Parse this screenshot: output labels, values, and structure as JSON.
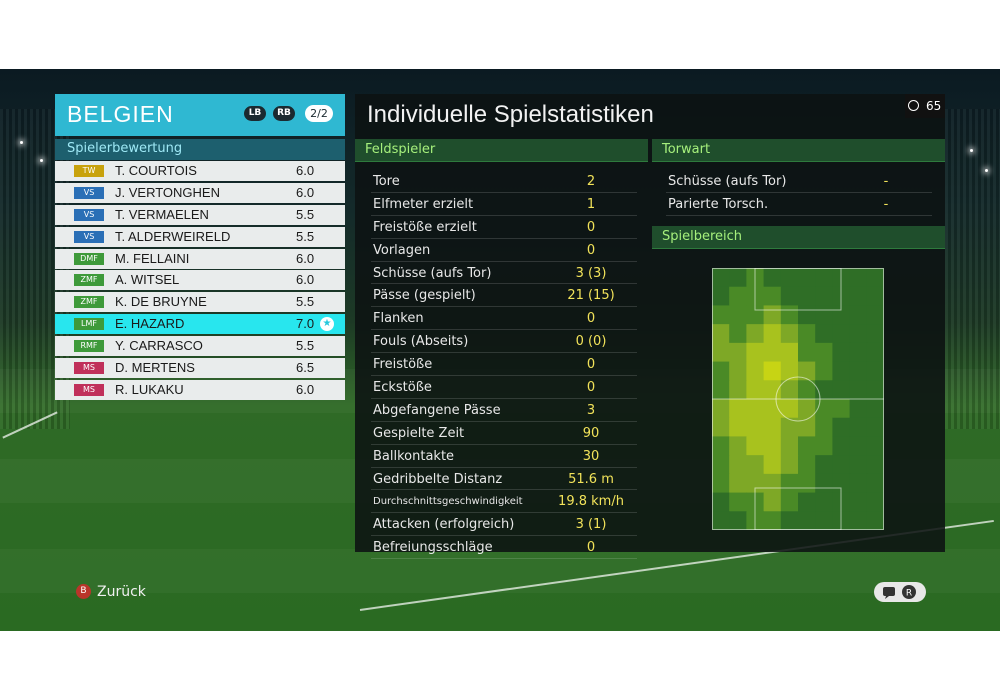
{
  "team": {
    "name": "BELGIEN",
    "lb_label": "LB",
    "rb_label": "RB",
    "page_indicator": "2/2"
  },
  "rating_header": "Spielerbewertung",
  "players": [
    {
      "pos": "TW",
      "pos_color": "#c8a20c",
      "name": "T. COURTOIS",
      "rating": "6.0"
    },
    {
      "pos": "VS",
      "pos_color": "#2a6fb6",
      "name": "J. VERTONGHEN",
      "rating": "6.0"
    },
    {
      "pos": "VS",
      "pos_color": "#2a6fb6",
      "name": "T. VERMAELEN",
      "rating": "5.5"
    },
    {
      "pos": "VS",
      "pos_color": "#2a6fb6",
      "name": "T. ALDERWEIRELD",
      "rating": "5.5"
    },
    {
      "pos": "DMF",
      "pos_color": "#3e9a3a",
      "name": "M. FELLAINI",
      "rating": "6.0"
    },
    {
      "pos": "ZMF",
      "pos_color": "#3e9a3a",
      "name": "A. WITSEL",
      "rating": "6.0"
    },
    {
      "pos": "ZMF",
      "pos_color": "#3e9a3a",
      "name": "K. DE BRUYNE",
      "rating": "5.5"
    },
    {
      "pos": "LMF",
      "pos_color": "#3e9a3a",
      "name": "E. HAZARD",
      "rating": "7.0",
      "selected": true
    },
    {
      "pos": "RMF",
      "pos_color": "#3e9a3a",
      "name": "Y. CARRASCO",
      "rating": "5.5"
    },
    {
      "pos": "MS",
      "pos_color": "#c0305a",
      "name": "D. MERTENS",
      "rating": "6.5"
    },
    {
      "pos": "MS",
      "pos_color": "#c0305a",
      "name": "R. LUKAKU",
      "rating": "6.0"
    }
  ],
  "stats_title": "Individuelle Spielstatistiken",
  "clock": {
    "icon": "clock-icon",
    "value": "65"
  },
  "field_section": "Feldspieler",
  "field_stats": [
    {
      "label": "Tore",
      "value": "2"
    },
    {
      "label": "Elfmeter erzielt",
      "value": "1"
    },
    {
      "label": "Freistöße erzielt",
      "value": "0"
    },
    {
      "label": "Vorlagen",
      "value": "0"
    },
    {
      "label": "Schüsse (aufs Tor)",
      "value": "3 (3)"
    },
    {
      "label": "Pässe (gespielt)",
      "value": "21 (15)"
    },
    {
      "label": "Flanken",
      "value": "0"
    },
    {
      "label": "Fouls (Abseits)",
      "value": "0 (0)"
    },
    {
      "label": "Freistöße",
      "value": "0"
    },
    {
      "label": "Eckstöße",
      "value": "0"
    },
    {
      "label": "Abgefangene Pässe",
      "value": "3"
    },
    {
      "label": "Gespielte Zeit",
      "value": "90"
    },
    {
      "label": "Ballkontakte",
      "value": "30"
    },
    {
      "label": "Gedribbelte Distanz",
      "value": "51.6 m"
    },
    {
      "label": "Durchschnittsgeschwindigkeit",
      "value": "19.8 km/h",
      "small": true
    },
    {
      "label": "Attacken (erfolgreich)",
      "value": "3 (1)"
    },
    {
      "label": "Befreiungsschläge",
      "value": "0"
    }
  ],
  "gk_section": "Torwart",
  "gk_stats": [
    {
      "label": "Schüsse (aufs Tor)",
      "value": "-"
    },
    {
      "label": "Parierte Torsch.",
      "value": "-"
    }
  ],
  "area_section": "Spielbereich",
  "heatmap": {
    "cols": 10,
    "rows": 14,
    "intensity": [
      [
        0,
        0,
        1,
        0,
        0,
        0,
        0,
        0,
        0,
        0
      ],
      [
        0,
        1,
        1,
        1,
        0,
        0,
        0,
        0,
        0,
        0
      ],
      [
        1,
        1,
        1,
        2,
        1,
        0,
        0,
        0,
        0,
        0
      ],
      [
        2,
        1,
        2,
        3,
        2,
        1,
        0,
        0,
        0,
        0
      ],
      [
        2,
        2,
        3,
        3,
        3,
        1,
        1,
        0,
        0,
        0
      ],
      [
        1,
        2,
        3,
        4,
        3,
        2,
        1,
        0,
        0,
        0
      ],
      [
        1,
        2,
        3,
        3,
        2,
        1,
        0,
        0,
        0,
        0
      ],
      [
        2,
        3,
        3,
        3,
        3,
        2,
        1,
        1,
        0,
        0
      ],
      [
        2,
        3,
        3,
        3,
        2,
        2,
        1,
        0,
        0,
        0
      ],
      [
        1,
        2,
        3,
        3,
        2,
        1,
        1,
        0,
        0,
        0
      ],
      [
        1,
        2,
        2,
        3,
        2,
        1,
        0,
        0,
        0,
        0
      ],
      [
        1,
        2,
        2,
        2,
        1,
        1,
        0,
        0,
        0,
        0
      ],
      [
        0,
        1,
        1,
        2,
        1,
        0,
        0,
        0,
        0,
        0
      ],
      [
        0,
        0,
        1,
        1,
        0,
        0,
        0,
        0,
        0,
        0
      ]
    ]
  },
  "back_button": {
    "icon": "b-button-icon",
    "icon_text": "B",
    "label": "Zurück"
  },
  "bottom_right": {
    "icon": "chat-icon",
    "stick_label": "R"
  },
  "colors": {
    "team_header": "#2fb8d2",
    "selected_row": "#28e6ee",
    "value_yellow": "#f2e35a",
    "section_green": "#a6f07c"
  }
}
